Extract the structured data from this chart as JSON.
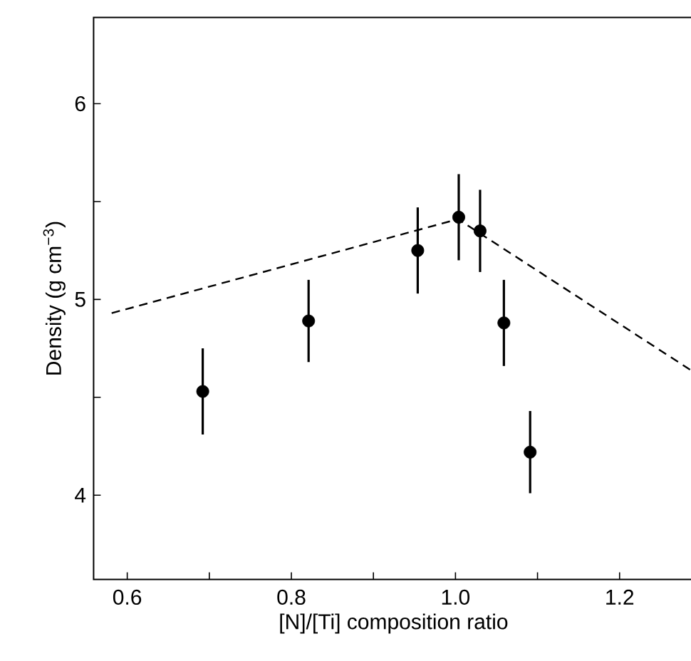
{
  "chart_data": {
    "type": "scatter",
    "xlabel": "[N]/[Ti] composition ratio",
    "ylabel": "Density (g cm$^{−3}$)",
    "xlim": [
      0.559,
      1.29
    ],
    "ylim": [
      3.57,
      6.44
    ],
    "xticks": [
      0.6,
      {
        "value": 0.7,
        "label": null
      },
      0.8,
      {
        "value": 0.9,
        "label": null
      },
      {
        "value": 1.0,
        "label": "1.0"
      },
      {
        "value": 1.1,
        "label": null
      },
      1.2
    ],
    "yticks": [
      4,
      {
        "value": 4.5,
        "label": null
      },
      5,
      {
        "value": 5.5,
        "label": null
      },
      6
    ],
    "series": [
      {
        "marker": "circle",
        "color": "#000000",
        "x": [
          0.692,
          0.821,
          0.954,
          1.004,
          1.03,
          1.059,
          1.091
        ],
        "values": [
          4.53,
          4.89,
          5.25,
          5.42,
          5.35,
          4.88,
          4.22
        ],
        "errors": [
          0.22,
          0.21,
          0.22,
          0.22,
          0.21,
          0.22,
          0.21
        ]
      },
      {
        "type": "line",
        "color": "#000000",
        "line_style": "dashed",
        "marker": "none",
        "x": [
          0.581,
          1.003,
          1.29
        ],
        "values": [
          4.93,
          5.41,
          4.63
        ]
      }
    ]
  }
}
